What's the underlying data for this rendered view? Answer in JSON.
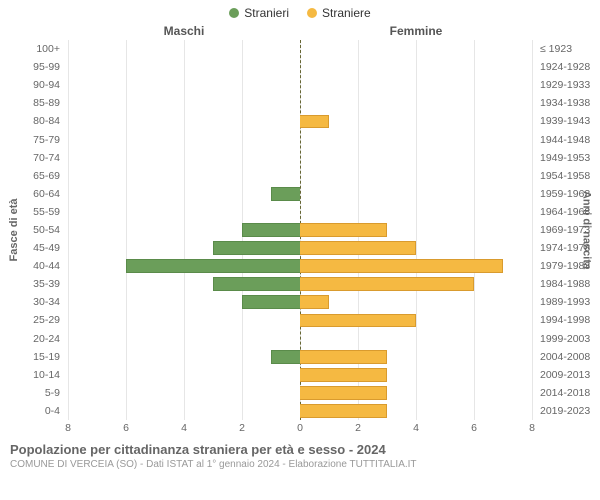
{
  "legend": {
    "male": {
      "label": "Stranieri",
      "color": "#6b9e5a"
    },
    "female": {
      "label": "Straniere",
      "color": "#f5b942"
    }
  },
  "section_titles": {
    "left": "Maschi",
    "right": "Femmine"
  },
  "axis": {
    "left_title": "Fasce di età",
    "right_title": "Anni di nascita",
    "xmax": 8,
    "xticks": [
      8,
      6,
      4,
      2,
      0,
      2,
      4,
      6,
      8
    ],
    "xtick_labels": [
      "8",
      "6",
      "4",
      "2",
      "0",
      "2",
      "4",
      "6",
      "8"
    ],
    "gridline_color": "#e6e6e6",
    "center_dash_color": "#666633"
  },
  "bar_style": {
    "male_fill": "#6b9e5a",
    "female_fill": "#f5b942",
    "male_border": "#5a8b4a",
    "female_border": "#d99b2e"
  },
  "rows": [
    {
      "age": "100+",
      "birth": "≤ 1923",
      "m": 0,
      "f": 0
    },
    {
      "age": "95-99",
      "birth": "1924-1928",
      "m": 0,
      "f": 0
    },
    {
      "age": "90-94",
      "birth": "1929-1933",
      "m": 0,
      "f": 0
    },
    {
      "age": "85-89",
      "birth": "1934-1938",
      "m": 0,
      "f": 0
    },
    {
      "age": "80-84",
      "birth": "1939-1943",
      "m": 0,
      "f": 1
    },
    {
      "age": "75-79",
      "birth": "1944-1948",
      "m": 0,
      "f": 0
    },
    {
      "age": "70-74",
      "birth": "1949-1953",
      "m": 0,
      "f": 0
    },
    {
      "age": "65-69",
      "birth": "1954-1958",
      "m": 0,
      "f": 0
    },
    {
      "age": "60-64",
      "birth": "1959-1963",
      "m": 1,
      "f": 0
    },
    {
      "age": "55-59",
      "birth": "1964-1968",
      "m": 0,
      "f": 0
    },
    {
      "age": "50-54",
      "birth": "1969-1973",
      "m": 2,
      "f": 3
    },
    {
      "age": "45-49",
      "birth": "1974-1978",
      "m": 3,
      "f": 4
    },
    {
      "age": "40-44",
      "birth": "1979-1983",
      "m": 6,
      "f": 7
    },
    {
      "age": "35-39",
      "birth": "1984-1988",
      "m": 3,
      "f": 6
    },
    {
      "age": "30-34",
      "birth": "1989-1993",
      "m": 2,
      "f": 1
    },
    {
      "age": "25-29",
      "birth": "1994-1998",
      "m": 0,
      "f": 4
    },
    {
      "age": "20-24",
      "birth": "1999-2003",
      "m": 0,
      "f": 0
    },
    {
      "age": "15-19",
      "birth": "2004-2008",
      "m": 1,
      "f": 3
    },
    {
      "age": "10-14",
      "birth": "2009-2013",
      "m": 0,
      "f": 3
    },
    {
      "age": "5-9",
      "birth": "2014-2018",
      "m": 0,
      "f": 3
    },
    {
      "age": "0-4",
      "birth": "2019-2023",
      "m": 0,
      "f": 3
    }
  ],
  "footer": {
    "title": "Popolazione per cittadinanza straniera per età e sesso - 2024",
    "subtitle": "COMUNE DI VERCEIA (SO) - Dati ISTAT al 1° gennaio 2024 - Elaborazione TUTTITALIA.IT"
  }
}
